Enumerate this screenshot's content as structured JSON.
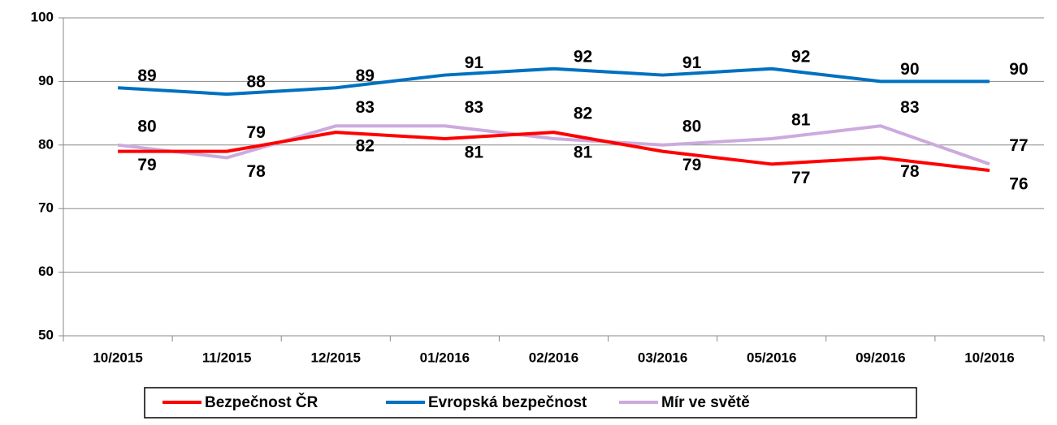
{
  "chart_data": {
    "type": "line",
    "categories": [
      "10/2015",
      "11/2015",
      "12/2015",
      "01/2016",
      "02/2016",
      "03/2016",
      "05/2016",
      "09/2016",
      "10/2016"
    ],
    "series": [
      {
        "name": "Bezpečnost ČR",
        "color": "#ff0000",
        "values": [
          79,
          79,
          82,
          81,
          82,
          79,
          77,
          78,
          76
        ]
      },
      {
        "name": "Evropská bezpečnost",
        "color": "#0070c0",
        "values": [
          89,
          88,
          89,
          91,
          92,
          91,
          92,
          90,
          90
        ]
      },
      {
        "name": "Mír ve světě",
        "color": "#ccaadd",
        "values": [
          80,
          78,
          83,
          83,
          81,
          80,
          81,
          83,
          77
        ]
      }
    ],
    "ylim": [
      50,
      100
    ],
    "yticks": [
      50,
      60,
      70,
      80,
      90,
      100
    ],
    "legend": "bottom"
  }
}
